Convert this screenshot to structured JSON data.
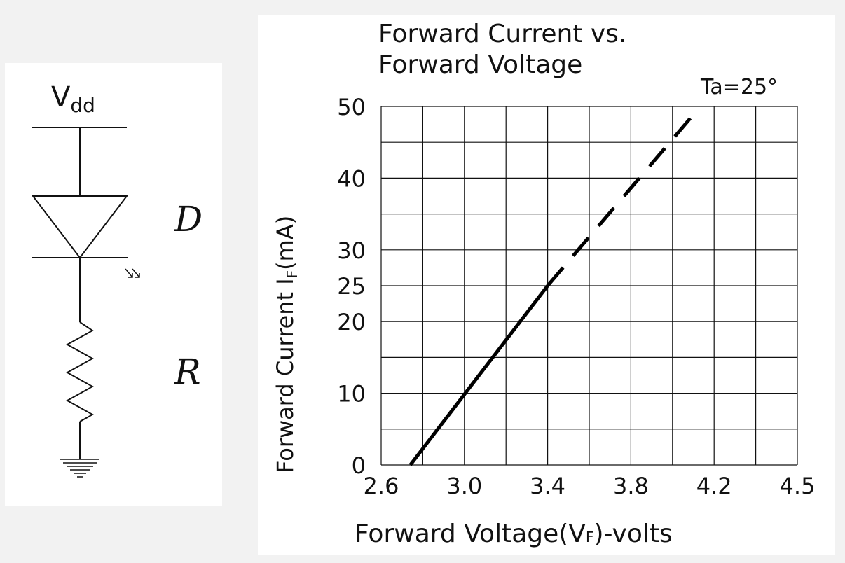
{
  "circuit": {
    "supply_label_main": "V",
    "supply_label_sub": "dd",
    "diode_label": "D",
    "resistor_label": "R"
  },
  "chart_data": {
    "type": "line",
    "title_line1": "Forward Current vs.",
    "title_line2": "Forward Voltage",
    "condition": "Ta=25°",
    "xlabel": "Forward Voltage(V",
    "xlabel_sub": "F",
    "xlabel_suffix": ")-volts",
    "ylabel": "Forward Current I",
    "ylabel_sub": "F",
    "ylabel_suffix": "(mA)",
    "x_ticks": [
      "2.6",
      "3.0",
      "3.4",
      "3.8",
      "4.2",
      "4.5"
    ],
    "y_ticks": [
      "0",
      "10",
      "20",
      "25",
      "30",
      "40",
      "50"
    ],
    "grid": true,
    "series": [
      {
        "style": "solid",
        "x": [
          2.74,
          3.4
        ],
        "y": [
          0,
          25
        ]
      },
      {
        "style": "dashed",
        "x": [
          3.4,
          4.09
        ],
        "y": [
          25,
          48.5
        ]
      }
    ]
  }
}
